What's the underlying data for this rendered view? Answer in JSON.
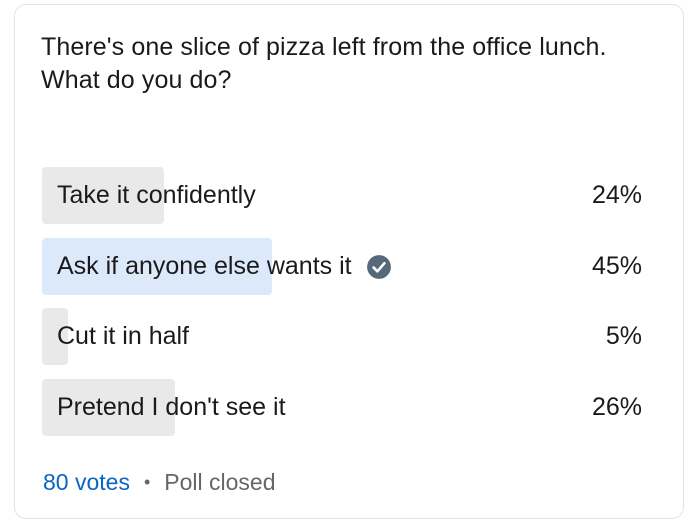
{
  "poll": {
    "question": "There's one slice of pizza left from the office lunch. What do you do?",
    "options": [
      {
        "label": "Take it confidently",
        "percent": "24%",
        "fraction": 0.24,
        "selected": false
      },
      {
        "label": "Ask if anyone else wants it",
        "percent": "45%",
        "fraction": 0.45,
        "selected": true
      },
      {
        "label": "Cut it in half",
        "percent": "5%",
        "fraction": 0.05,
        "selected": false
      },
      {
        "label": "Pretend I don't see it",
        "percent": "26%",
        "fraction": 0.26,
        "selected": false
      }
    ],
    "votes": "80 votes",
    "separator": "•",
    "status": "Poll closed",
    "selected_icon": "check-circle-icon"
  },
  "colors": {
    "bar": "#e9e9e9",
    "selected_bar": "#dce9fb",
    "accent": "#0a66c2",
    "check_icon": "#56687a",
    "muted_text": "#666666"
  }
}
